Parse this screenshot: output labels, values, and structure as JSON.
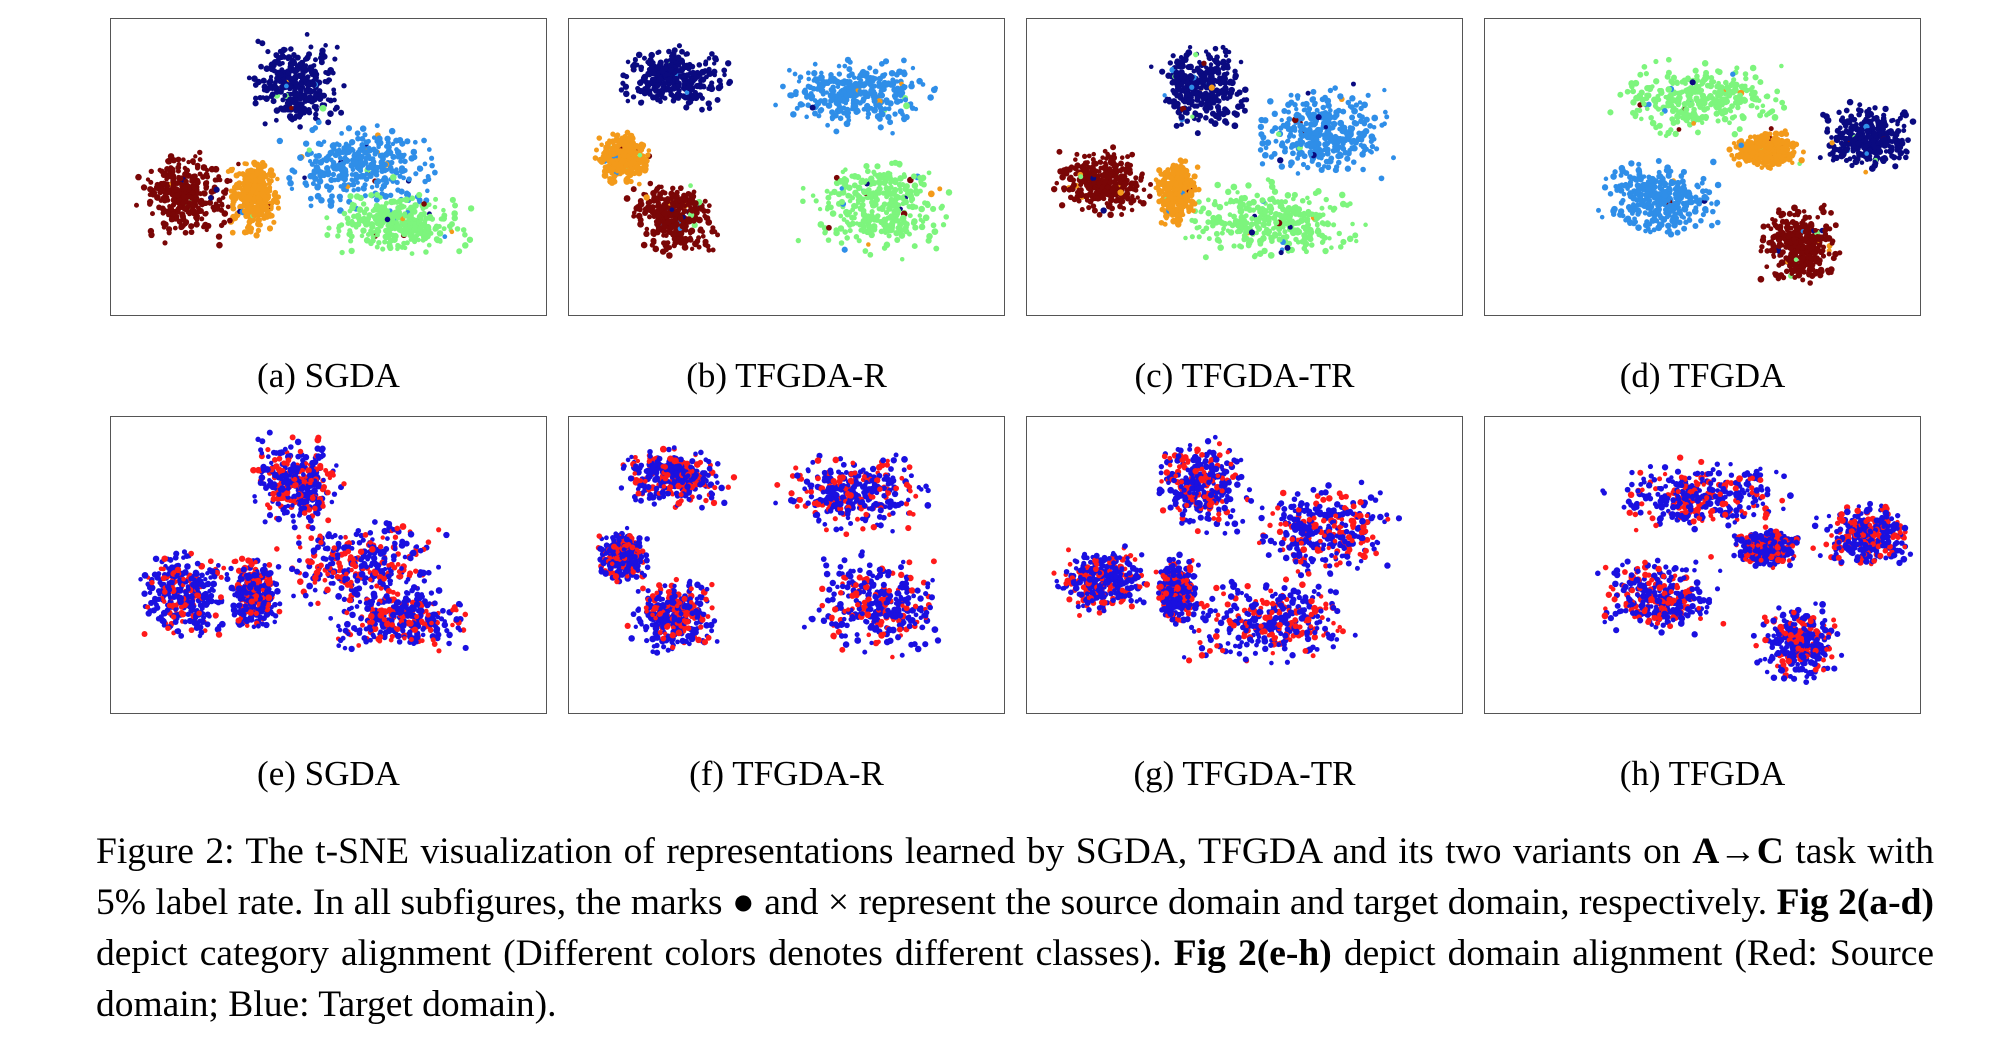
{
  "figure": {
    "subfigures": [
      {
        "label": "(a) SGDA",
        "mode": "category",
        "seed": 11
      },
      {
        "label": "(b) TFGDA-R",
        "mode": "category",
        "seed": 23
      },
      {
        "label": "(c) TFGDA-TR",
        "mode": "category",
        "seed": 37
      },
      {
        "label": "(d) TFGDA",
        "mode": "category",
        "seed": 41
      },
      {
        "label": "(e) SGDA",
        "mode": "domain",
        "seed": 11
      },
      {
        "label": "(f) TFGDA-R",
        "mode": "domain",
        "seed": 23
      },
      {
        "label": "(g) TFGDA-TR",
        "mode": "domain",
        "seed": 37
      },
      {
        "label": "(h) TFGDA",
        "mode": "domain",
        "seed": 41
      }
    ],
    "class_colors": [
      "#0a0a80",
      "#2f8ee8",
      "#7df57d",
      "#f39a1a",
      "#7a0606"
    ],
    "domain_colors": {
      "source": "#ff1a1a",
      "target": "#1a10e0"
    },
    "caption": {
      "p1": "Figure 2: The t-SNE visualization of representations learned by SGDA, TFGDA and its two variants on ",
      "task": "A→C",
      "p2": " task with 5% label rate. In all subfigures, the marks ● and × represent the source domain and target domain, respectively. ",
      "b1": "Fig 2(a-d)",
      "p3": " depict category alignment (Different colors denotes different classes). ",
      "b2": "Fig 2(e-h)",
      "p4": " depict domain alignment (Red: Source domain; Blue: Target domain)."
    }
  }
}
